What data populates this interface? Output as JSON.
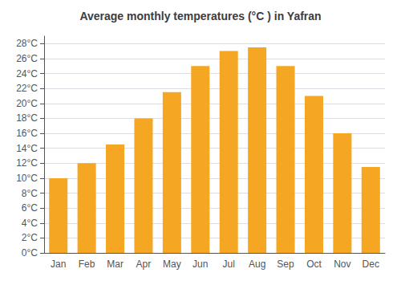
{
  "chart_data": {
    "type": "bar",
    "title": "Average monthly temperatures (°C ) in Yafran",
    "categories": [
      "Jan",
      "Feb",
      "Mar",
      "Apr",
      "May",
      "Jun",
      "Jul",
      "Aug",
      "Sep",
      "Oct",
      "Nov",
      "Dec"
    ],
    "values": [
      10.0,
      12.0,
      14.5,
      18.0,
      21.5,
      25.0,
      27.0,
      27.5,
      25.0,
      21.0,
      16.0,
      11.5
    ],
    "color": "#F5A623",
    "ylim": [
      0,
      29
    ],
    "yticks": [
      {
        "value": 0,
        "label": "0°C"
      },
      {
        "value": 2,
        "label": "2°C"
      },
      {
        "value": 4,
        "label": "4°C"
      },
      {
        "value": 6,
        "label": "6°C"
      },
      {
        "value": 8,
        "label": "8°C"
      },
      {
        "value": 10,
        "label": "10°C"
      },
      {
        "value": 12,
        "label": "12°C"
      },
      {
        "value": 14,
        "label": "14°C"
      },
      {
        "value": 16,
        "label": "16°C"
      },
      {
        "value": 18,
        "label": "18°C"
      },
      {
        "value": 20,
        "label": "20°C"
      },
      {
        "value": 22,
        "label": "22°C"
      },
      {
        "value": 24,
        "label": "24°C"
      },
      {
        "value": 26,
        "label": "26°C"
      },
      {
        "value": 28,
        "label": "28°C"
      }
    ],
    "grid": true
  }
}
